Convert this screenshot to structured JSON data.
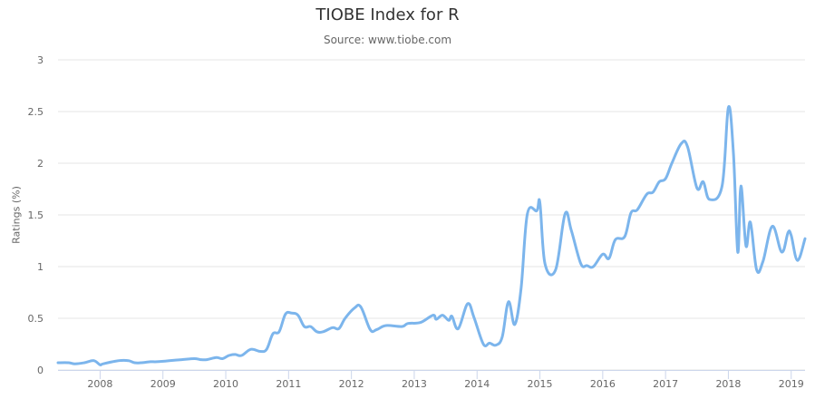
{
  "chart_data": {
    "type": "line",
    "title": "TIOBE Index for R",
    "subtitle": "Source: www.tiobe.com",
    "xlabel": "",
    "ylabel": "Ratings (%)",
    "ylim": [
      0,
      3
    ],
    "xlim": [
      2007.33,
      2019.22
    ],
    "yticks": [
      "0",
      "0.5",
      "1",
      "1.5",
      "2",
      "2.5",
      "3"
    ],
    "xticks": [
      "2008",
      "2009",
      "2010",
      "2011",
      "2012",
      "2013",
      "2014",
      "2015",
      "2016",
      "2017",
      "2018",
      "2019"
    ],
    "grid": true,
    "legend": "none",
    "color": "#7cb5ec",
    "series": [
      {
        "x": [
          2007.33,
          2007.5,
          2007.6,
          2007.75,
          2007.9,
          2008.0,
          2008.05,
          2008.3,
          2008.45,
          2008.55,
          2008.65,
          2008.8,
          2008.9,
          2009.1,
          2009.3,
          2009.5,
          2009.6,
          2009.7,
          2009.85,
          2009.95,
          2010.05,
          2010.15,
          2010.25,
          2010.4,
          2010.55,
          2010.65,
          2010.75,
          2010.85,
          2010.95,
          2011.05,
          2011.15,
          2011.25,
          2011.35,
          2011.45,
          2011.55,
          2011.7,
          2011.8,
          2011.9,
          2012.05,
          2012.15,
          2012.3,
          2012.4,
          2012.55,
          2012.8,
          2012.9,
          2013.1,
          2013.3,
          2013.35,
          2013.45,
          2013.55,
          2013.6,
          2013.7,
          2013.85,
          2013.95,
          2014.1,
          2014.2,
          2014.3,
          2014.4,
          2014.5,
          2014.6,
          2014.7,
          2014.8,
          2014.95,
          2015.0,
          2015.08,
          2015.25,
          2015.4,
          2015.5,
          2015.65,
          2015.75,
          2015.85,
          2016.0,
          2016.1,
          2016.2,
          2016.35,
          2016.45,
          2016.55,
          2016.7,
          2016.8,
          2016.9,
          2017.0,
          2017.1,
          2017.25,
          2017.35,
          2017.5,
          2017.6,
          2017.7,
          2017.9,
          2018.0,
          2018.08,
          2018.15,
          2018.2,
          2018.28,
          2018.35,
          2018.45,
          2018.55,
          2018.7,
          2018.85,
          2018.95,
          2019.0,
          2019.1,
          2019.22
        ],
        "values": [
          0.07,
          0.07,
          0.06,
          0.07,
          0.09,
          0.05,
          0.06,
          0.09,
          0.09,
          0.07,
          0.07,
          0.08,
          0.08,
          0.09,
          0.1,
          0.11,
          0.1,
          0.1,
          0.12,
          0.11,
          0.14,
          0.15,
          0.14,
          0.2,
          0.18,
          0.2,
          0.35,
          0.37,
          0.54,
          0.55,
          0.53,
          0.42,
          0.42,
          0.37,
          0.37,
          0.41,
          0.4,
          0.5,
          0.6,
          0.61,
          0.39,
          0.39,
          0.43,
          0.42,
          0.45,
          0.46,
          0.53,
          0.49,
          0.53,
          0.48,
          0.52,
          0.4,
          0.64,
          0.51,
          0.25,
          0.26,
          0.24,
          0.32,
          0.66,
          0.44,
          0.79,
          1.51,
          1.54,
          1.62,
          1.03,
          0.97,
          1.51,
          1.35,
          1.03,
          1.01,
          1.0,
          1.12,
          1.08,
          1.26,
          1.29,
          1.52,
          1.55,
          1.7,
          1.72,
          1.82,
          1.85,
          2.0,
          2.19,
          2.16,
          1.76,
          1.82,
          1.65,
          1.78,
          2.54,
          2.1,
          1.14,
          1.78,
          1.2,
          1.43,
          0.97,
          1.05,
          1.39,
          1.14,
          1.33,
          1.3,
          1.06,
          1.27
        ]
      }
    ]
  }
}
